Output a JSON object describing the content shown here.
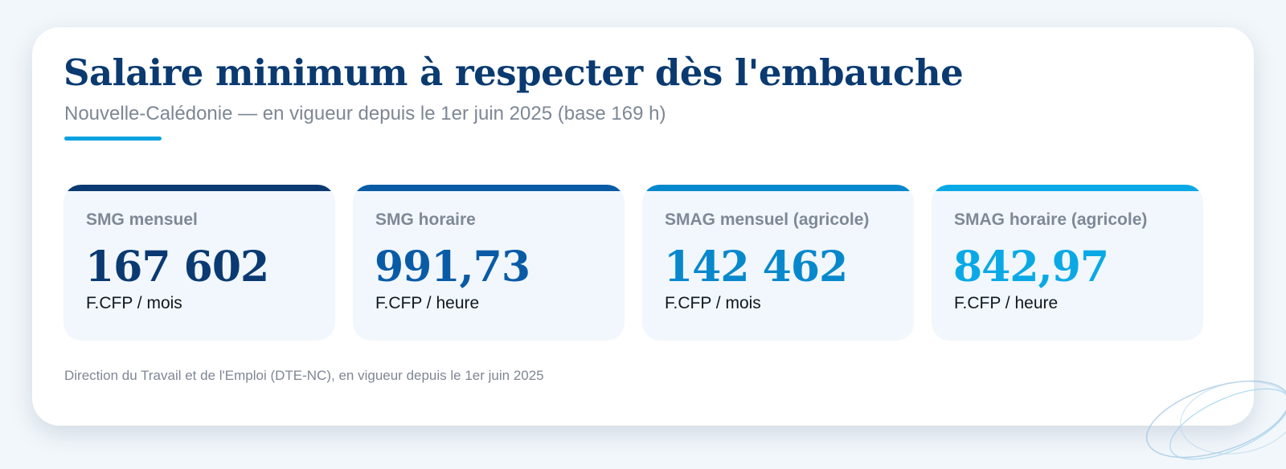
{
  "header": {
    "title": "Salaire minimum à respecter dès l'embauche",
    "subtitle": "Nouvelle-Calédonie — en vigueur depuis le 1er juin 2025 (base 169 h)"
  },
  "colors": {
    "title": "#0a3a70",
    "accent": "#0aa3e0",
    "muted": "#7d8794",
    "tile_background": "#f1f7fc",
    "page_background": "#f2f7fb"
  },
  "tiles": [
    {
      "label": "SMG mensuel",
      "value": "167 602",
      "unit": "F.CFP / mois",
      "color": "#0b3a72"
    },
    {
      "label": "SMG horaire",
      "value": "991,73",
      "unit": "F.CFP / heure",
      "color": "#0a5ba6"
    },
    {
      "label": "SMAG mensuel (agricole)",
      "value": "142 462",
      "unit": "F.CFP / mois",
      "color": "#0888cc"
    },
    {
      "label": "SMAG horaire (agricole)",
      "value": "842,97",
      "unit": "F.CFP / heure",
      "color": "#0aa9e6"
    }
  ],
  "footer": {
    "source": "Direction du Travail et de l'Emploi (DTE-NC), en vigueur depuis le 1er juin 2025"
  },
  "decoration": {
    "icon": "concentric-ellipses-decoration"
  }
}
